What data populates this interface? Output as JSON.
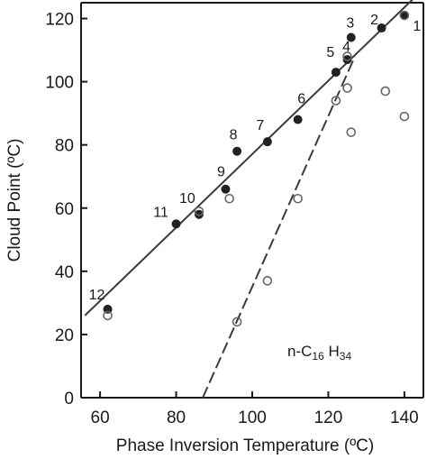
{
  "chart_data": {
    "type": "scatter",
    "xlabel": "Phase Inversion Temperature (ºC)",
    "ylabel": "Cloud Point (ºC)",
    "xlim": [
      55,
      145
    ],
    "ylim": [
      0,
      125
    ],
    "x_ticks": [
      60,
      80,
      100,
      120,
      140
    ],
    "y_ticks": [
      0,
      20,
      40,
      60,
      80,
      100,
      120
    ],
    "grid": false,
    "annotation": {
      "main1": "n-C",
      "sub1": "16",
      "main2": " H",
      "sub2": "34"
    },
    "series": [
      {
        "marker": "filled",
        "points": [
          {
            "label": "1",
            "x": 140,
            "y": 121
          },
          {
            "label": "2",
            "x": 134,
            "y": 117
          },
          {
            "label": "3",
            "x": 126,
            "y": 114
          },
          {
            "label": "4",
            "x": 125,
            "y": 107
          },
          {
            "label": "5",
            "x": 122,
            "y": 103
          },
          {
            "label": "6",
            "x": 112,
            "y": 88
          },
          {
            "label": "7",
            "x": 104,
            "y": 81
          },
          {
            "label": "8",
            "x": 96,
            "y": 78
          },
          {
            "label": "9",
            "x": 93,
            "y": 66
          },
          {
            "label": "10",
            "x": 86,
            "y": 58
          },
          {
            "label": "11",
            "x": 80,
            "y": 55
          },
          {
            "label": "12",
            "x": 62,
            "y": 28
          }
        ]
      },
      {
        "marker": "open",
        "points": [
          {
            "x": 62,
            "y": 26
          },
          {
            "x": 86,
            "y": 59
          },
          {
            "x": 94,
            "y": 63
          },
          {
            "x": 96,
            "y": 24
          },
          {
            "x": 104,
            "y": 37
          },
          {
            "x": 112,
            "y": 63
          },
          {
            "x": 122,
            "y": 94
          },
          {
            "x": 125,
            "y": 98
          },
          {
            "x": 125,
            "y": 108
          },
          {
            "x": 126,
            "y": 84
          },
          {
            "x": 135,
            "y": 97
          },
          {
            "x": 140,
            "y": 89
          },
          {
            "x": 140,
            "y": 121
          }
        ]
      }
    ],
    "fit_lines": [
      {
        "style": "solid",
        "x": [
          56,
          143
        ],
        "y": [
          26,
          127
        ]
      },
      {
        "style": "dashed",
        "x": [
          87,
          127
        ],
        "y": [
          0,
          108
        ]
      }
    ]
  }
}
